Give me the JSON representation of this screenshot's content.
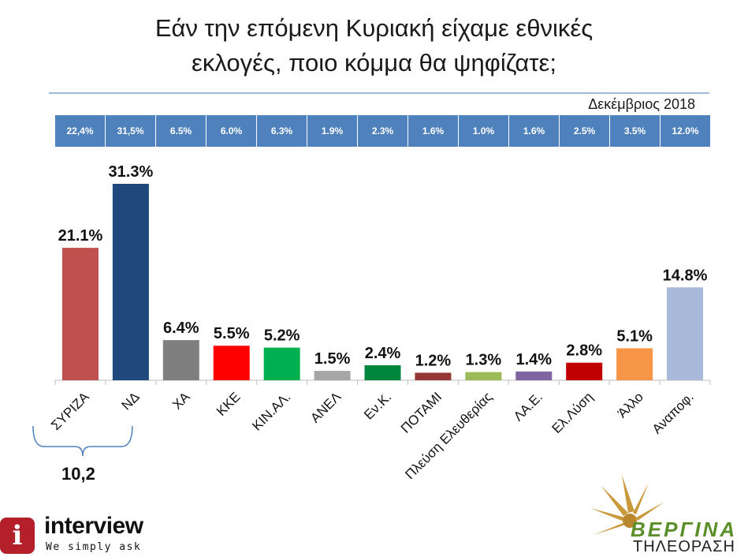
{
  "title_line1": "Εάν την επόμενη Κυριακή είχαμε εθνικές",
  "title_line2": "εκλογές, ποιο κόμμα θα ψηφίζατε;",
  "date_label": "Δεκέμβριος 2018",
  "previous_values": [
    "22,4%",
    "31,5%",
    "6.5%",
    "6.0%",
    "6.3%",
    "1.9%",
    "2.3%",
    "1.6%",
    "1.0%",
    "1.6%",
    "2.5%",
    "3.5%",
    "12.0%"
  ],
  "brace_difference": "10,2",
  "colors": {
    "rule": "#9dbad6",
    "header_row": "#4f81bd"
  },
  "chart_data": {
    "type": "bar",
    "categories": [
      "ΣΥΡΙΖΑ",
      "ΝΔ",
      "ΧΑ",
      "ΚΚΕ",
      "ΚΙΝ.ΑΛ.",
      "ΑΝΕΛ",
      "Εν.Κ.",
      "ΠΟΤΑΜΙ",
      "Πλεύση Ελευθερίας",
      "ΛΑ.Ε.",
      "Ελ.Λύση",
      "Άλλο",
      "Αναποφ."
    ],
    "values": [
      21.1,
      31.3,
      6.4,
      5.5,
      5.2,
      1.5,
      2.4,
      1.2,
      1.3,
      1.4,
      2.8,
      5.1,
      14.8
    ],
    "value_labels": [
      "21.1%",
      "31.3%",
      "6.4%",
      "5.5%",
      "5.2%",
      "1.5%",
      "2.4%",
      "1.2%",
      "1.3%",
      "1.4%",
      "2.8%",
      "5.1%",
      "14.8%"
    ],
    "colors": [
      "#c0504d",
      "#1f497d",
      "#7f7f7f",
      "#ff0000",
      "#00b050",
      "#a6a6a6",
      "#00863d",
      "#953735",
      "#9bbb59",
      "#8064a2",
      "#c00000",
      "#f79646",
      "#a9b9d9"
    ],
    "ylim": [
      0,
      35
    ],
    "grid": false,
    "title": "",
    "xlabel": "",
    "ylabel": ""
  },
  "logos": {
    "interview_name": "interview",
    "interview_tagline": "We simply ask",
    "interview_mark": "i",
    "vergina_name": "ΒΕΡΓΙΝΑ",
    "vergina_sub": "ΤΗΛΕΟΡΑΣΗ"
  }
}
